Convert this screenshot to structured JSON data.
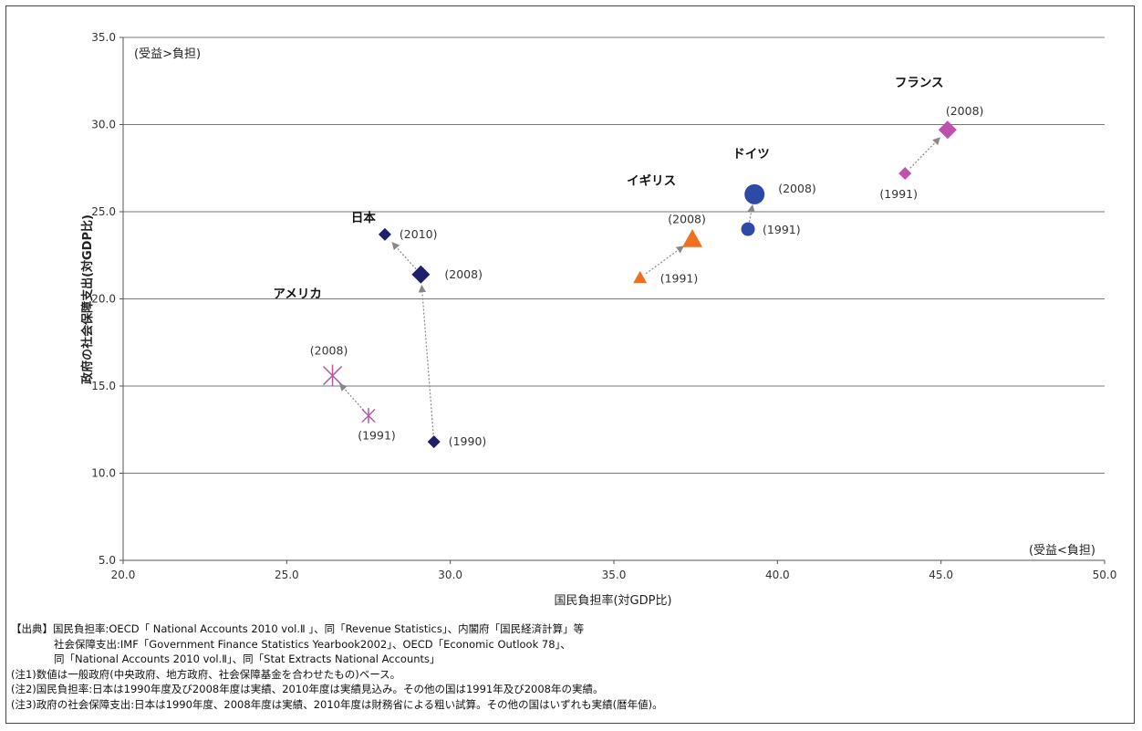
{
  "chart_data": {
    "type": "scatter",
    "xlabel": "国民負担率(対GDP比)",
    "ylabel": "政府の社会保障支出(対GDP比)",
    "xlim": [
      20.0,
      50.0
    ],
    "ylim": [
      5.0,
      35.0
    ],
    "xticks": [
      "20.0",
      "25.0",
      "30.0",
      "35.0",
      "40.0",
      "45.0",
      "50.0"
    ],
    "yticks": [
      "5.0",
      "10.0",
      "15.0",
      "20.0",
      "25.0",
      "30.0",
      "35.0"
    ],
    "grid": "horizontal",
    "corner_labels": {
      "top_left": "(受益>負担)",
      "bottom_right": "(受益<負担)"
    },
    "series": [
      {
        "name": "日本",
        "color": "#1f1f6b",
        "marker": "diamond",
        "points": [
          {
            "x": 29.5,
            "y": 11.8,
            "label": "(1990)",
            "size": "small"
          },
          {
            "x": 29.1,
            "y": 21.4,
            "label": "(2008)",
            "size": "large"
          },
          {
            "x": 28.0,
            "y": 23.7,
            "label": "(2010)",
            "size": "small"
          }
        ]
      },
      {
        "name": "アメリカ",
        "color": "#b05aa8",
        "marker": "asterisk",
        "points": [
          {
            "x": 27.5,
            "y": 13.3,
            "label": "(1991)",
            "size": "small"
          },
          {
            "x": 26.4,
            "y": 15.6,
            "label": "(2008)",
            "size": "large"
          }
        ]
      },
      {
        "name": "イギリス",
        "color": "#f07020",
        "marker": "triangle",
        "points": [
          {
            "x": 35.8,
            "y": 21.2,
            "label": "(1991)",
            "size": "small"
          },
          {
            "x": 37.4,
            "y": 23.4,
            "label": "(2008)",
            "size": "large"
          }
        ]
      },
      {
        "name": "ドイツ",
        "color": "#2e4aa8",
        "marker": "circle",
        "points": [
          {
            "x": 39.1,
            "y": 24.0,
            "label": "(1991)",
            "size": "small"
          },
          {
            "x": 39.3,
            "y": 26.0,
            "label": "(2008)",
            "size": "large"
          }
        ]
      },
      {
        "name": "フランス",
        "color": "#c050b0",
        "marker": "diamond",
        "points": [
          {
            "x": 43.9,
            "y": 27.2,
            "label": "(1991)",
            "size": "small"
          },
          {
            "x": 45.2,
            "y": 29.7,
            "label": "(2008)",
            "size": "large"
          }
        ]
      }
    ],
    "arrows": [
      {
        "from": [
          29.5,
          11.8
        ],
        "to": [
          29.1,
          21.4
        ]
      },
      {
        "from": [
          29.1,
          21.4
        ],
        "to": [
          28.0,
          23.7
        ]
      },
      {
        "from": [
          27.5,
          13.3
        ],
        "to": [
          26.4,
          15.6
        ]
      },
      {
        "from": [
          35.8,
          21.2
        ],
        "to": [
          37.4,
          23.4
        ]
      },
      {
        "from": [
          39.1,
          24.0
        ],
        "to": [
          39.3,
          26.0
        ]
      },
      {
        "from": [
          43.9,
          27.2
        ],
        "to": [
          45.2,
          29.7
        ]
      }
    ]
  },
  "notes": [
    "【出典】国民負担率:OECD「 National Accounts 2010 vol.Ⅱ 」、同「Revenue Statistics」、内閣府「国民経済計算」等",
    "社会保障支出:IMF「Government Finance Statistics Yearbook2002」、OECD「Economic Outlook 78」、",
    "同「National Accounts 2010 vol.Ⅱ」、同「Stat Extracts National Accounts」",
    "(注1)数値は一般政府(中央政府、地方政府、社会保障基金を合わせたもの)ベース。",
    "(注2)国民負担率:日本は1990年度及び2008年度は実績、2010年度は実績見込み。その他の国は1991年及び2008年の実績。",
    "(注3)政府の社会保障支出:日本は1990年度、2008年度は実績、2010年度は財務省による粗い試算。その他の国はいずれも実績(暦年値)。"
  ]
}
